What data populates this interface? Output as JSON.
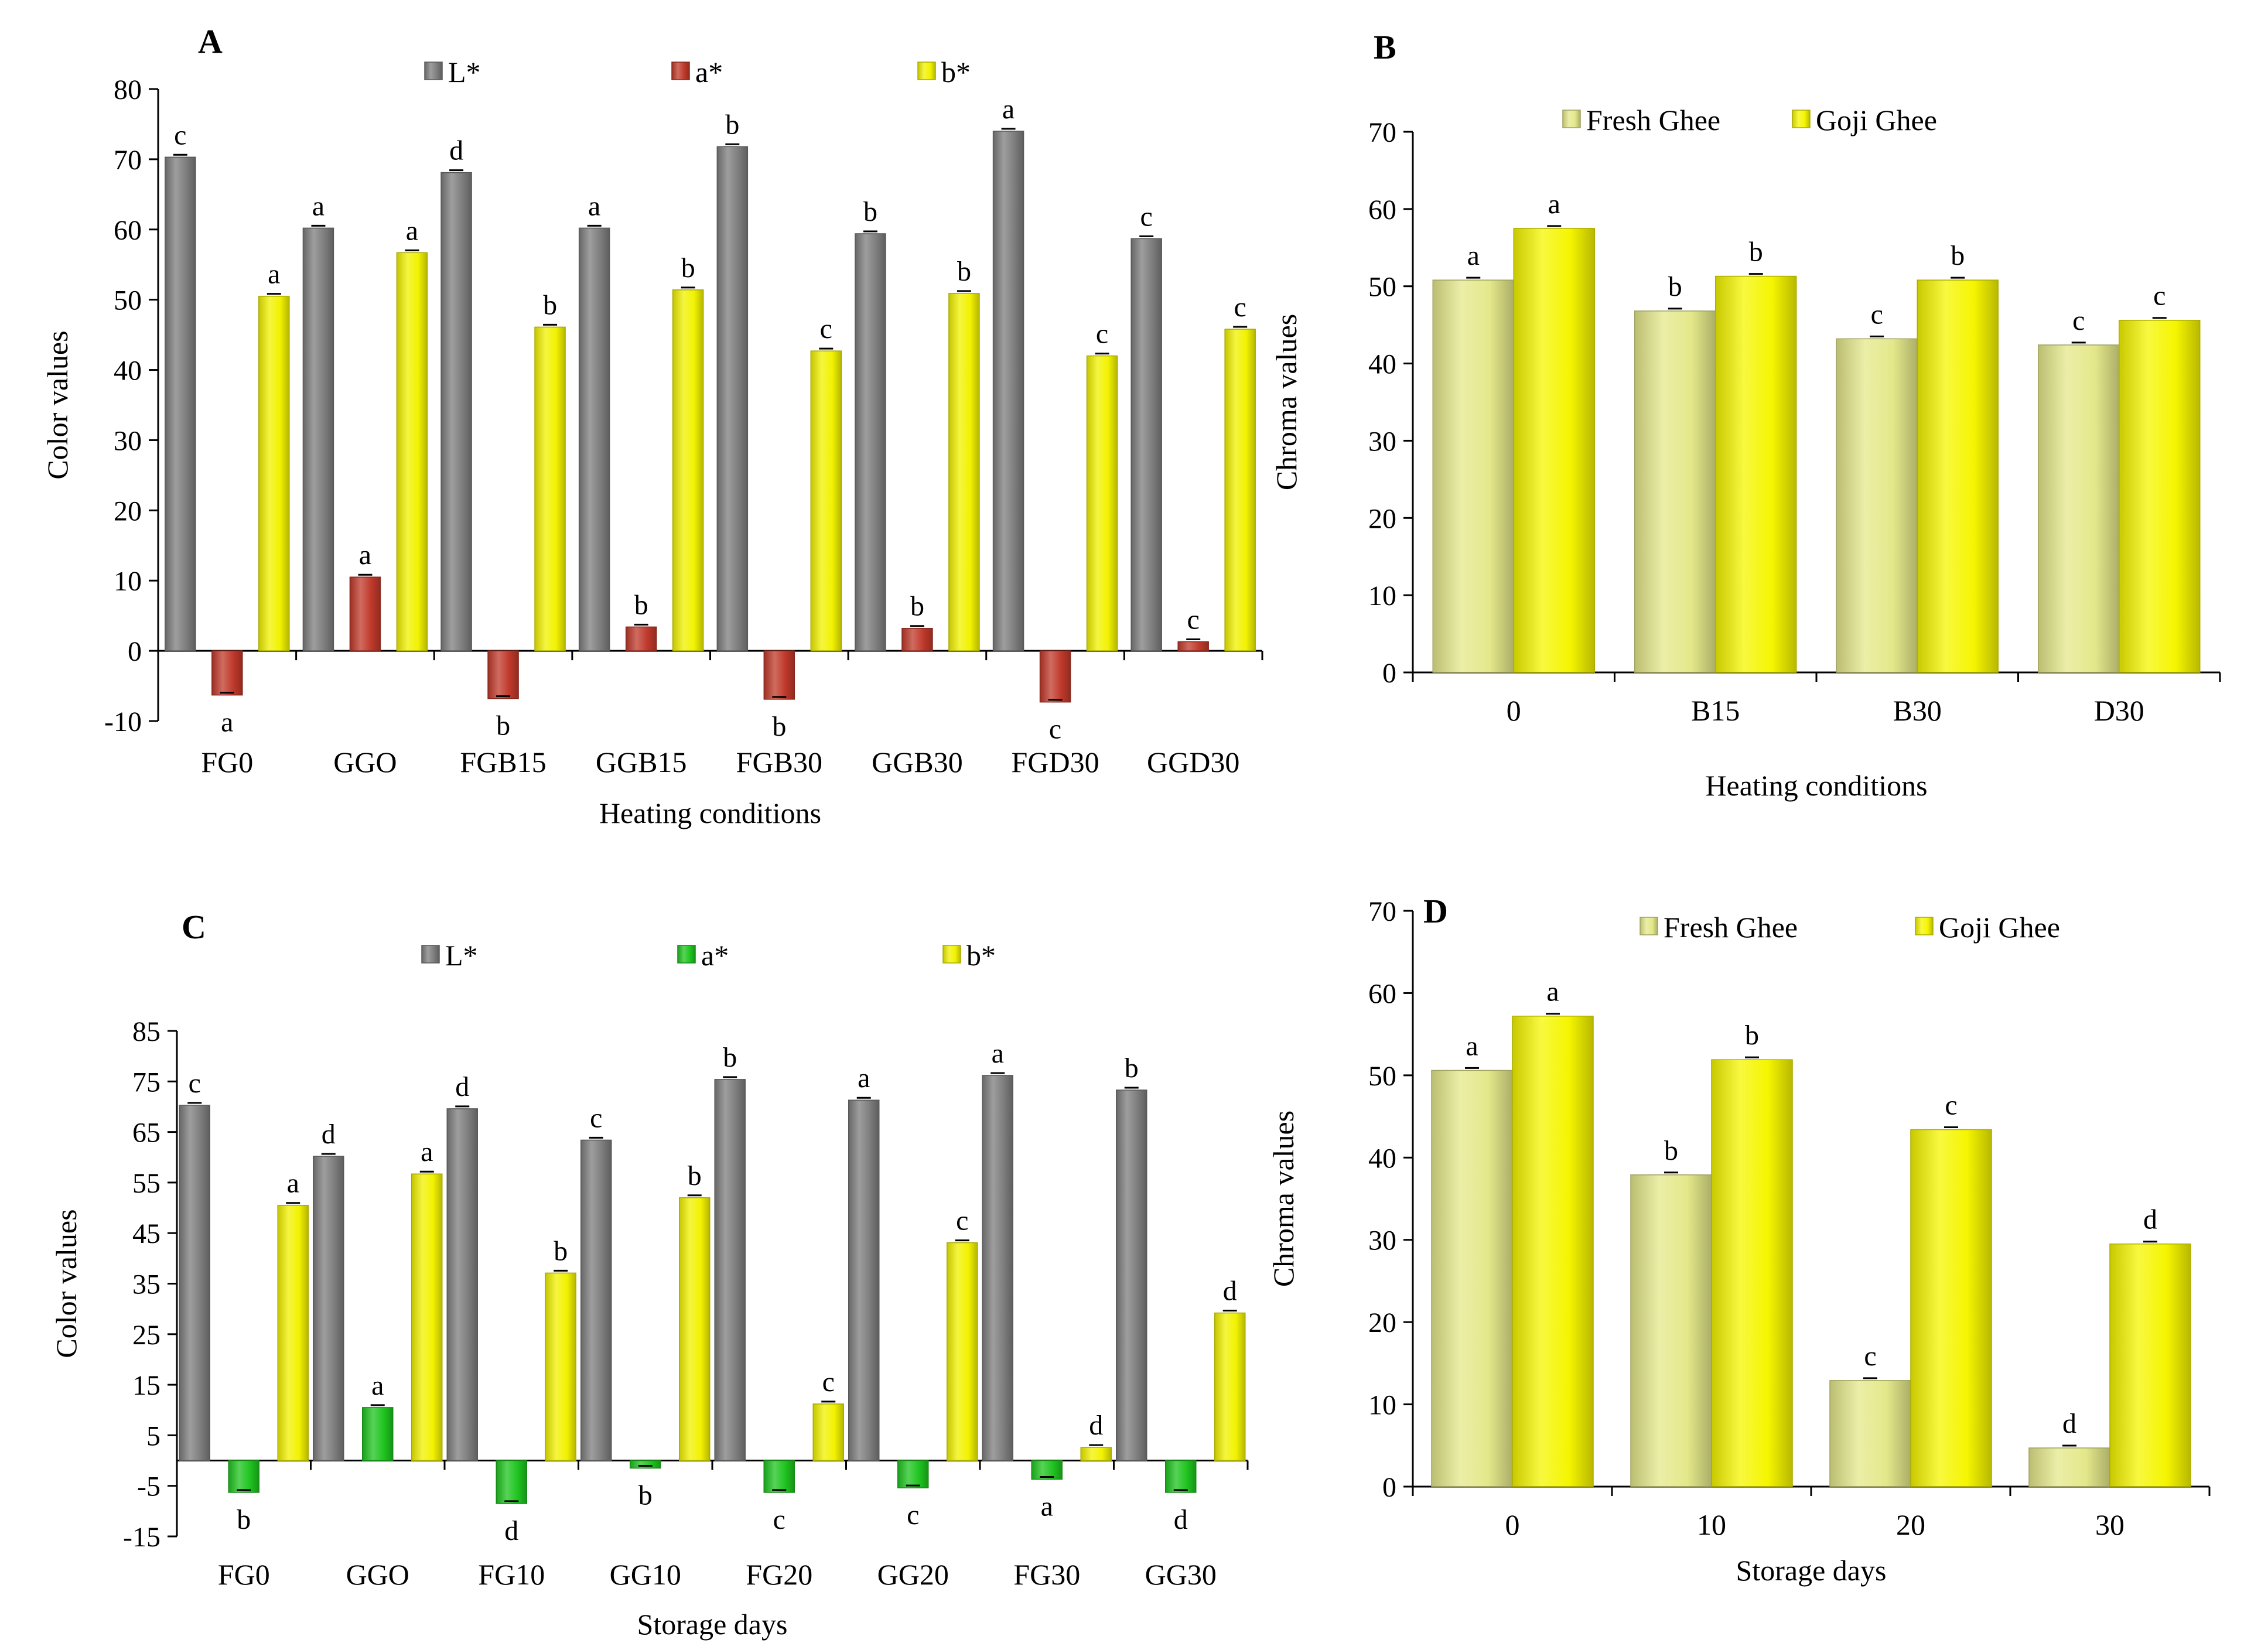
{
  "colors": {
    "L": "#7d7d7d",
    "a_red": "#c0392b",
    "a_green": "#1fc41f",
    "b": "#f2f200",
    "fresh": "#e4e88a",
    "goji": "#f5f500"
  },
  "chart_data": [
    {
      "id": "A",
      "panel_label": "A",
      "type": "bar",
      "title": "",
      "xlabel": "Heating conditions",
      "ylabel": "Color values",
      "ylim": [
        -10,
        80
      ],
      "yticks": [
        -10,
        0,
        10,
        20,
        30,
        40,
        50,
        60,
        70,
        80
      ],
      "categories": [
        "FG0",
        "GGO",
        "FGB15",
        "GGB15",
        "FGB30",
        "GGB30",
        "FGD30",
        "GGD30"
      ],
      "series": [
        {
          "name": "L*",
          "color_key": "L",
          "values": [
            70.3,
            60.2,
            68.1,
            60.2,
            71.8,
            59.4,
            74.0,
            58.7
          ],
          "labels": [
            "c",
            "a",
            "d",
            "a",
            "b",
            "b",
            "a",
            "c"
          ]
        },
        {
          "name": "a*",
          "color_key": "a_red",
          "values": [
            -6.3,
            10.5,
            -6.8,
            3.4,
            -6.9,
            3.2,
            -7.3,
            1.3
          ],
          "labels": [
            "a",
            "a",
            "b",
            "b",
            "b",
            "b",
            "c",
            "c"
          ]
        },
        {
          "name": "b*",
          "color_key": "b",
          "values": [
            50.5,
            56.7,
            46.1,
            51.4,
            42.7,
            50.9,
            42.0,
            45.8
          ],
          "labels": [
            "a",
            "a",
            "b",
            "b",
            "c",
            "b",
            "c",
            "c"
          ]
        }
      ]
    },
    {
      "id": "B",
      "panel_label": "B",
      "type": "bar",
      "title": "",
      "xlabel": "Heating  conditions",
      "ylabel": "Chroma  values",
      "ylim": [
        0,
        70
      ],
      "yticks": [
        0,
        10,
        20,
        30,
        40,
        50,
        60,
        70
      ],
      "categories": [
        "0",
        "B15",
        "B30",
        "D30"
      ],
      "series": [
        {
          "name": "Fresh Ghee",
          "color_key": "fresh",
          "values": [
            50.8,
            46.8,
            43.2,
            42.4
          ],
          "labels": [
            "a",
            "b",
            "c",
            "c"
          ]
        },
        {
          "name": "Goji Ghee",
          "color_key": "goji",
          "values": [
            57.5,
            51.3,
            50.8,
            45.6
          ],
          "labels": [
            "a",
            "b",
            "b",
            "c"
          ]
        }
      ]
    },
    {
      "id": "C",
      "panel_label": "C",
      "type": "bar",
      "title": "",
      "xlabel": "Storage days",
      "ylabel": "Color values",
      "ylim": [
        -15,
        85
      ],
      "yticks": [
        -15,
        -5,
        5,
        15,
        25,
        35,
        45,
        55,
        65,
        75,
        85
      ],
      "categories": [
        "FG0",
        "GGO",
        "FG10",
        "GG10",
        "FG20",
        "GG20",
        "FG30",
        "GG30"
      ],
      "series": [
        {
          "name": "L*",
          "color_key": "L",
          "values": [
            70.3,
            60.2,
            69.6,
            63.4,
            75.4,
            71.3,
            76.2,
            73.3
          ],
          "labels": [
            "c",
            "d",
            "d",
            "c",
            "b",
            "a",
            "a",
            "b"
          ]
        },
        {
          "name": "a*",
          "color_key": "a_green",
          "values": [
            -6.3,
            10.5,
            -8.5,
            -1.5,
            -6.3,
            -5.4,
            -3.7,
            -6.3
          ],
          "labels": [
            "b",
            "a",
            "d",
            "b",
            "c",
            "c",
            "a",
            "d"
          ]
        },
        {
          "name": "b*",
          "color_key": "b",
          "values": [
            50.5,
            56.7,
            37.1,
            52.0,
            11.2,
            43.1,
            2.6,
            29.2
          ],
          "labels": [
            "a",
            "a",
            "b",
            "b",
            "c",
            "c",
            "d",
            "d"
          ]
        }
      ]
    },
    {
      "id": "D",
      "panel_label": "D",
      "type": "bar",
      "title": "",
      "xlabel": "Storage days",
      "ylabel": "Chroma values",
      "ylim": [
        0,
        70
      ],
      "yticks": [
        0,
        10,
        20,
        30,
        40,
        50,
        60,
        70
      ],
      "categories": [
        "0",
        "10",
        "20",
        "30"
      ],
      "series": [
        {
          "name": "Fresh Ghee",
          "color_key": "fresh",
          "values": [
            50.6,
            37.9,
            12.9,
            4.7
          ],
          "labels": [
            "a",
            "b",
            "c",
            "d"
          ]
        },
        {
          "name": "Goji Ghee",
          "color_key": "goji",
          "values": [
            57.2,
            51.9,
            43.4,
            29.5
          ],
          "labels": [
            "a",
            "b",
            "c",
            "d"
          ]
        }
      ]
    }
  ]
}
